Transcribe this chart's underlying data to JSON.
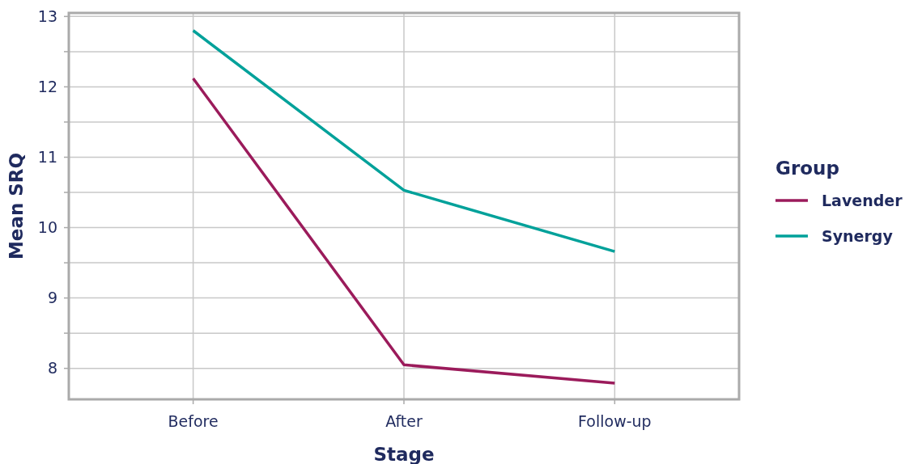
{
  "chart_data": {
    "type": "line",
    "xlabel": "Stage",
    "ylabel": "Mean SRQ",
    "legend_title": "Group",
    "categories": [
      "Before",
      "After",
      "Follow-up"
    ],
    "series": [
      {
        "name": "Lavender",
        "color": "#9b1b5b",
        "values": [
          12.12,
          8.05,
          7.79
        ]
      },
      {
        "name": "Synergy",
        "color": "#00a19a",
        "values": [
          12.8,
          10.53,
          9.66
        ]
      }
    ],
    "ylim": [
      7.56,
      13.05
    ],
    "yticks": [
      8,
      {
        "value": 8.5,
        "label": null
      },
      9,
      {
        "value": 9.5,
        "label": null
      },
      10,
      {
        "value": 10.5,
        "label": null
      },
      11,
      {
        "value": 11.5,
        "label": null
      },
      12,
      {
        "value": 12.5,
        "label": null
      },
      13
    ],
    "grid": true,
    "legend": "right",
    "line_style": "solid",
    "marker": "none"
  }
}
